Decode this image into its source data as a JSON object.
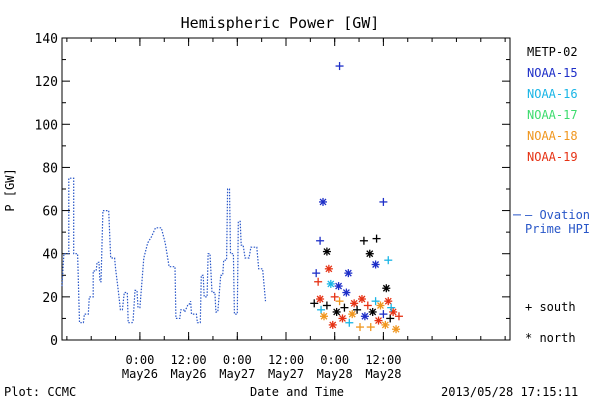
{
  "chart_data": {
    "type": "scatter",
    "title": "Hemispheric Power [GW]",
    "ylabel": "P [GW]",
    "xlabel": "Date and Time",
    "ylim": [
      0,
      140
    ],
    "yticks": [
      "0",
      "20",
      "40",
      "60",
      "80",
      "100",
      "120",
      "140"
    ],
    "xlim": [
      -0.3,
      4.3
    ],
    "xticks": [
      {
        "x": 0.5,
        "time": "0:00",
        "date": "May26"
      },
      {
        "x": 1.0,
        "time": "12:00",
        "date": "May26"
      },
      {
        "x": 1.5,
        "time": "0:00",
        "date": "May27"
      },
      {
        "x": 2.0,
        "time": "12:00",
        "date": "May27"
      },
      {
        "x": 2.5,
        "time": "0:00",
        "date": "May28"
      },
      {
        "x": 3.0,
        "time": "12:00",
        "date": "May28"
      }
    ],
    "legend_position": "right",
    "legend": [
      {
        "name": "METP-02",
        "color": "#000000"
      },
      {
        "name": "NOAA-15",
        "color": "#1e2fc8"
      },
      {
        "name": "NOAA-16",
        "color": "#19b5e6"
      },
      {
        "name": "NOAA-17",
        "color": "#3ddc6e"
      },
      {
        "name": "NOAA-18",
        "color": "#f0961e"
      },
      {
        "name": "NOAA-19",
        "color": "#e63214"
      }
    ],
    "ovation_label_1": "– Ovation",
    "ovation_label_2": "Prime HPI",
    "ovation_color": "#2856c8",
    "ovation_value_mark": 58,
    "symbol_south": "+ south",
    "symbol_north": "* north",
    "ovation": [
      [
        -0.3,
        25
      ],
      [
        -0.28,
        40
      ],
      [
        -0.23,
        40
      ],
      [
        -0.23,
        75
      ],
      [
        -0.18,
        75
      ],
      [
        -0.18,
        40
      ],
      [
        -0.14,
        40
      ],
      [
        -0.12,
        8
      ],
      [
        -0.08,
        8
      ],
      [
        -0.07,
        12
      ],
      [
        -0.03,
        12
      ],
      [
        -0.02,
        20
      ],
      [
        0.02,
        20
      ],
      [
        0.02,
        32
      ],
      [
        0.05,
        32
      ],
      [
        0.06,
        36
      ],
      [
        0.08,
        36
      ],
      [
        0.09,
        27
      ],
      [
        0.1,
        27
      ],
      [
        0.12,
        60
      ],
      [
        0.18,
        60
      ],
      [
        0.2,
        38
      ],
      [
        0.24,
        38
      ],
      [
        0.25,
        33
      ],
      [
        0.28,
        22
      ],
      [
        0.3,
        14
      ],
      [
        0.32,
        14
      ],
      [
        0.34,
        22
      ],
      [
        0.37,
        22
      ],
      [
        0.38,
        8
      ],
      [
        0.42,
        8
      ],
      [
        0.43,
        9
      ],
      [
        0.45,
        23
      ],
      [
        0.47,
        23
      ],
      [
        0.48,
        15
      ],
      [
        0.5,
        15
      ],
      [
        0.54,
        38
      ],
      [
        0.58,
        45
      ],
      [
        0.62,
        48
      ],
      [
        0.66,
        52
      ],
      [
        0.72,
        52
      ],
      [
        0.76,
        45
      ],
      [
        0.8,
        34
      ],
      [
        0.86,
        34
      ],
      [
        0.87,
        10
      ],
      [
        0.91,
        10
      ],
      [
        0.92,
        14
      ],
      [
        0.95,
        14
      ],
      [
        0.96,
        13
      ],
      [
        0.99,
        16
      ],
      [
        1.0,
        16
      ],
      [
        1.02,
        18
      ],
      [
        1.03,
        12
      ],
      [
        1.08,
        12
      ],
      [
        1.09,
        8
      ],
      [
        1.12,
        8
      ],
      [
        1.13,
        30
      ],
      [
        1.15,
        30
      ],
      [
        1.16,
        20
      ],
      [
        1.19,
        20
      ],
      [
        1.2,
        40
      ],
      [
        1.22,
        40
      ],
      [
        1.24,
        22
      ],
      [
        1.27,
        22
      ],
      [
        1.28,
        13
      ],
      [
        1.3,
        13
      ],
      [
        1.33,
        30
      ],
      [
        1.35,
        30
      ],
      [
        1.36,
        37
      ],
      [
        1.39,
        37
      ],
      [
        1.4,
        70
      ],
      [
        1.42,
        70
      ],
      [
        1.43,
        40
      ],
      [
        1.46,
        40
      ],
      [
        1.47,
        12
      ],
      [
        1.5,
        12
      ],
      [
        1.51,
        55
      ],
      [
        1.53,
        55
      ],
      [
        1.54,
        44
      ],
      [
        1.56,
        44
      ],
      [
        1.58,
        38
      ],
      [
        1.62,
        38
      ],
      [
        1.64,
        43
      ],
      [
        1.7,
        43
      ],
      [
        1.72,
        33
      ],
      [
        1.76,
        33
      ],
      [
        1.79,
        18
      ]
    ],
    "markers": [
      {
        "x": 2.55,
        "y": 127,
        "sym": "+",
        "color": "#1e2fc8"
      },
      {
        "x": 2.38,
        "y": 64,
        "sym": "*",
        "color": "#1e2fc8"
      },
      {
        "x": 3.0,
        "y": 64,
        "sym": "+",
        "color": "#1e2fc8"
      },
      {
        "x": 2.35,
        "y": 46,
        "sym": "+",
        "color": "#1e2fc8"
      },
      {
        "x": 2.8,
        "y": 46,
        "sym": "+",
        "color": "#000000"
      },
      {
        "x": 2.93,
        "y": 47,
        "sym": "+",
        "color": "#000000"
      },
      {
        "x": 2.42,
        "y": 41,
        "sym": "*",
        "color": "#000000"
      },
      {
        "x": 2.86,
        "y": 40,
        "sym": "*",
        "color": "#000000"
      },
      {
        "x": 2.92,
        "y": 35,
        "sym": "*",
        "color": "#1e2fc8"
      },
      {
        "x": 3.05,
        "y": 37,
        "sym": "+",
        "color": "#19b5e6"
      },
      {
        "x": 2.31,
        "y": 31,
        "sym": "+",
        "color": "#1e2fc8"
      },
      {
        "x": 2.44,
        "y": 33,
        "sym": "*",
        "color": "#e63214"
      },
      {
        "x": 2.54,
        "y": 25,
        "sym": "*",
        "color": "#1e2fc8"
      },
      {
        "x": 2.64,
        "y": 31,
        "sym": "*",
        "color": "#1e2fc8"
      },
      {
        "x": 3.03,
        "y": 24,
        "sym": "*",
        "color": "#000000"
      },
      {
        "x": 2.33,
        "y": 27,
        "sym": "+",
        "color": "#e63214"
      },
      {
        "x": 2.29,
        "y": 17,
        "sym": "+",
        "color": "#000000"
      },
      {
        "x": 2.35,
        "y": 19,
        "sym": "*",
        "color": "#e63214"
      },
      {
        "x": 2.36,
        "y": 14,
        "sym": "+",
        "color": "#19b5e6"
      },
      {
        "x": 2.39,
        "y": 11,
        "sym": "*",
        "color": "#f0961e"
      },
      {
        "x": 2.42,
        "y": 16,
        "sym": "+",
        "color": "#000000"
      },
      {
        "x": 2.46,
        "y": 26,
        "sym": "*",
        "color": "#19b5e6"
      },
      {
        "x": 2.5,
        "y": 20,
        "sym": "+",
        "color": "#e63214"
      },
      {
        "x": 2.52,
        "y": 13,
        "sym": "*",
        "color": "#000000"
      },
      {
        "x": 2.55,
        "y": 18,
        "sym": "+",
        "color": "#f0961e"
      },
      {
        "x": 2.58,
        "y": 10,
        "sym": "*",
        "color": "#e63214"
      },
      {
        "x": 2.6,
        "y": 15,
        "sym": "+",
        "color": "#000000"
      },
      {
        "x": 2.62,
        "y": 22,
        "sym": "*",
        "color": "#1e2fc8"
      },
      {
        "x": 2.65,
        "y": 8,
        "sym": "+",
        "color": "#19b5e6"
      },
      {
        "x": 2.68,
        "y": 12,
        "sym": "*",
        "color": "#f0961e"
      },
      {
        "x": 2.7,
        "y": 17,
        "sym": "*",
        "color": "#e63214"
      },
      {
        "x": 2.73,
        "y": 14,
        "sym": "+",
        "color": "#000000"
      },
      {
        "x": 2.76,
        "y": 6,
        "sym": "+",
        "color": "#f0961e"
      },
      {
        "x": 2.78,
        "y": 19,
        "sym": "*",
        "color": "#e63214"
      },
      {
        "x": 2.81,
        "y": 11,
        "sym": "*",
        "color": "#1e2fc8"
      },
      {
        "x": 2.84,
        "y": 16,
        "sym": "+",
        "color": "#e63214"
      },
      {
        "x": 2.87,
        "y": 6,
        "sym": "+",
        "color": "#f0961e"
      },
      {
        "x": 2.89,
        "y": 13,
        "sym": "*",
        "color": "#000000"
      },
      {
        "x": 2.92,
        "y": 18,
        "sym": "+",
        "color": "#19b5e6"
      },
      {
        "x": 2.95,
        "y": 9,
        "sym": "*",
        "color": "#e63214"
      },
      {
        "x": 2.97,
        "y": 16,
        "sym": "*",
        "color": "#f0961e"
      },
      {
        "x": 3.0,
        "y": 12,
        "sym": "+",
        "color": "#1e2fc8"
      },
      {
        "x": 3.02,
        "y": 7,
        "sym": "*",
        "color": "#f0961e"
      },
      {
        "x": 3.05,
        "y": 18,
        "sym": "*",
        "color": "#e63214"
      },
      {
        "x": 3.07,
        "y": 10,
        "sym": "+",
        "color": "#000000"
      },
      {
        "x": 3.1,
        "y": 13,
        "sym": "*",
        "color": "#e63214"
      },
      {
        "x": 3.13,
        "y": 5,
        "sym": "*",
        "color": "#f0961e"
      },
      {
        "x": 3.16,
        "y": 11,
        "sym": "+",
        "color": "#e63214"
      },
      {
        "x": 3.08,
        "y": 15,
        "sym": "+",
        "color": "#19b5e6"
      },
      {
        "x": 2.48,
        "y": 7,
        "sym": "*",
        "color": "#e63214"
      }
    ]
  },
  "footer": {
    "plot_credit": "Plot: CCMC",
    "timestamp": "2013/05/28 17:15:11"
  }
}
